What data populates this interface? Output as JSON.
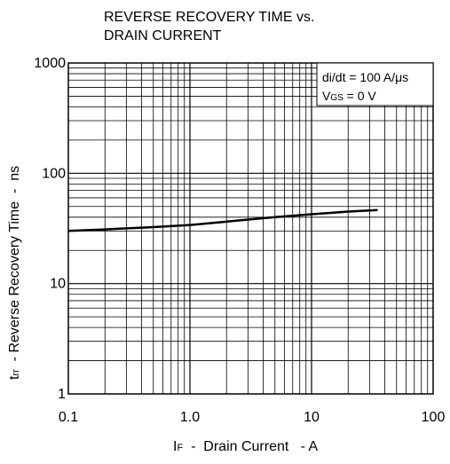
{
  "chart_data": {
    "type": "line",
    "title_line1": "REVERSE RECOVERY TIME vs.",
    "title_line2": "DRAIN CURRENT",
    "xlabel": {
      "symbol": "I",
      "subscript": "F",
      "text": "  -  Drain Current   - A"
    },
    "ylabel": {
      "symbol": "t",
      "subscript": "rr",
      "text": "  - Reverse Recovery Time  -  ns"
    },
    "x_scale": "log",
    "y_scale": "log",
    "xlim": [
      0.1,
      100
    ],
    "ylim": [
      1,
      1000
    ],
    "grid": true,
    "x_tick_labels": [
      {
        "value": 0.1,
        "label": "0.1"
      },
      {
        "value": 1,
        "label": "1.0"
      },
      {
        "value": 10,
        "label": "10"
      },
      {
        "value": 100,
        "label": "100"
      }
    ],
    "y_tick_labels": [
      {
        "value": 1,
        "label": "1"
      },
      {
        "value": 10,
        "label": "10"
      },
      {
        "value": 100,
        "label": "100"
      },
      {
        "value": 1000,
        "label": "1000"
      }
    ],
    "annotation": {
      "line1": "di/dt = 100 A/μs",
      "line2_symbol": "V",
      "line2_subscript": "GS",
      "line2_text": " = 0 V",
      "placement": "top-right"
    },
    "series": [
      {
        "x": [
          0.1,
          0.2,
          0.5,
          1.0,
          2.0,
          5.0,
          10.0,
          20.0,
          35.0
        ],
        "y": [
          30,
          31,
          32.5,
          34,
          36.5,
          40,
          42.5,
          45,
          46.5
        ]
      }
    ],
    "colors": {
      "line": "#000000",
      "grid": "#000000",
      "background": "#ffffff"
    }
  }
}
